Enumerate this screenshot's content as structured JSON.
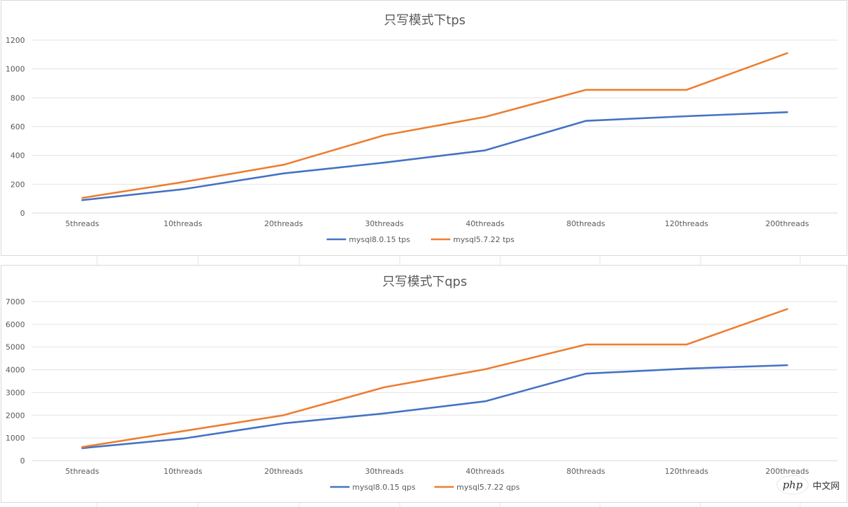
{
  "chart_data": [
    {
      "type": "line",
      "title": "只写模式下tps",
      "categories": [
        "5threads",
        "10threads",
        "20threads",
        "30threads",
        "40threads",
        "80threads",
        "120threads",
        "200threads"
      ],
      "yticks": [
        0,
        200,
        400,
        600,
        800,
        1000,
        1200
      ],
      "ylim": [
        0,
        1200
      ],
      "grid": true,
      "legend": "bottom",
      "series": [
        {
          "name": "mysql8.0.15 tps",
          "color": "#4472c4",
          "values": [
            90,
            165,
            275,
            350,
            435,
            640,
            672,
            700
          ]
        },
        {
          "name": "mysql5.7.22 tps",
          "color": "#ed7d31",
          "values": [
            105,
            215,
            335,
            540,
            667,
            855,
            855,
            1110
          ]
        }
      ]
    },
    {
      "type": "line",
      "title": "只写模式下qps",
      "categories": [
        "5threads",
        "10threads",
        "20threads",
        "30threads",
        "40threads",
        "80threads",
        "120threads",
        "200threads"
      ],
      "yticks": [
        0,
        1000,
        2000,
        3000,
        4000,
        5000,
        6000,
        7000
      ],
      "ylim": [
        0,
        7000
      ],
      "grid": true,
      "legend": "bottom",
      "series": [
        {
          "name": "mysql8.0.15 qps",
          "color": "#4472c4",
          "values": [
            550,
            970,
            1640,
            2080,
            2610,
            3830,
            4050,
            4200
          ]
        },
        {
          "name": "mysql5.7.22 qps",
          "color": "#ed7d31",
          "values": [
            600,
            1300,
            2000,
            3230,
            4020,
            5110,
            5110,
            6670
          ]
        }
      ]
    }
  ],
  "watermark": {
    "logo": "php",
    "text": "中文网"
  }
}
